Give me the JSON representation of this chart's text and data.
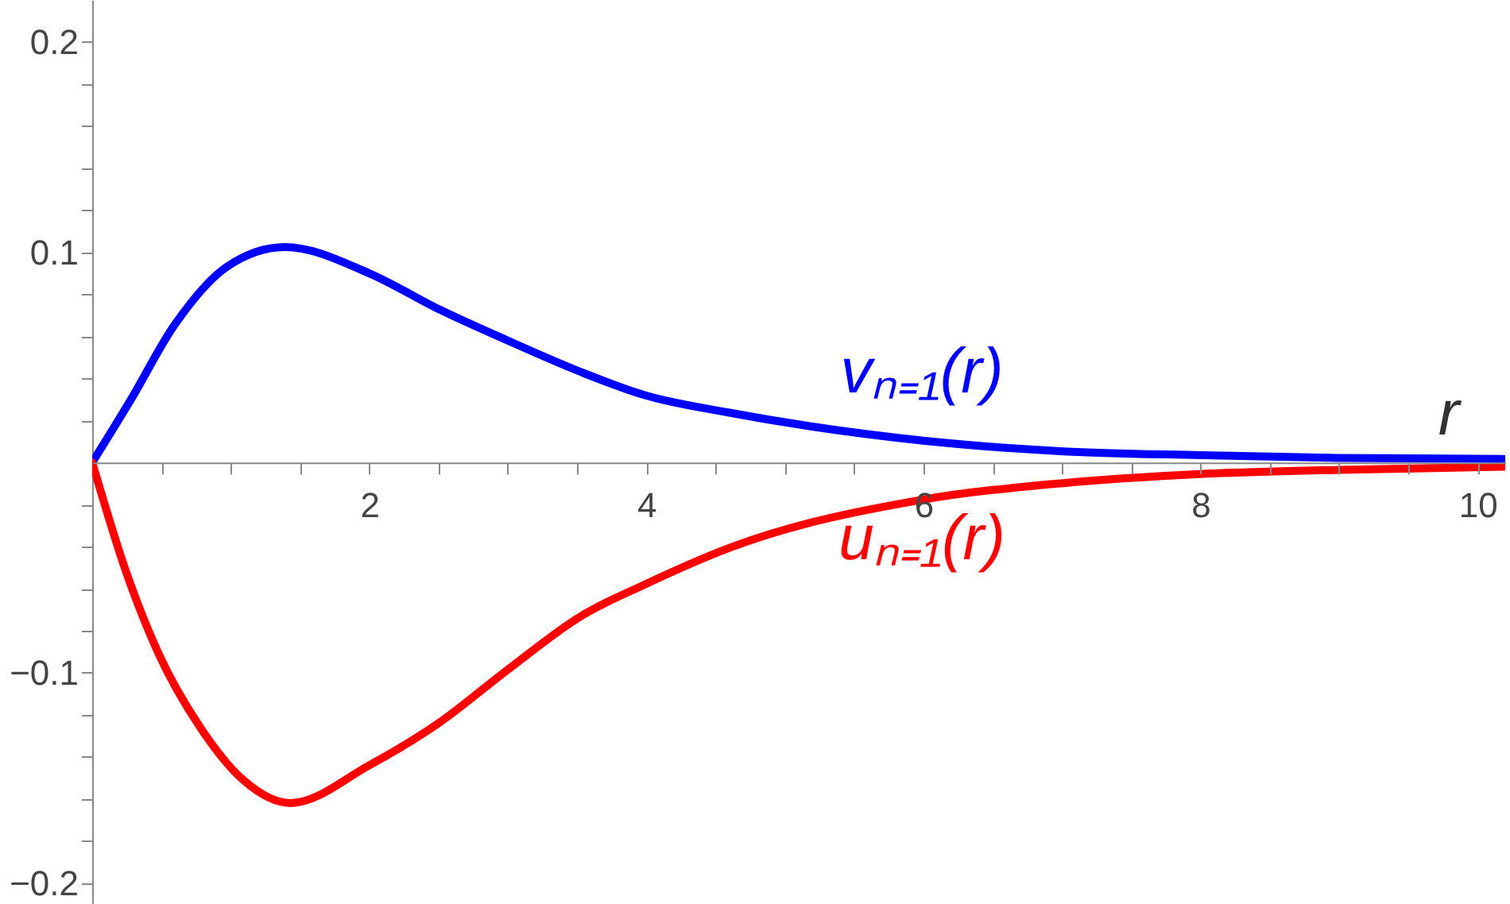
{
  "chart_data": {
    "type": "line",
    "xlabel": "r",
    "xlim": [
      0,
      10.2
    ],
    "ylim": [
      -0.21,
      0.22
    ],
    "xticks": [
      {
        "value": 0.5,
        "label": null
      },
      {
        "value": 1,
        "label": null
      },
      {
        "value": 1.5,
        "label": null
      },
      2,
      {
        "value": 2.5,
        "label": null
      },
      {
        "value": 3,
        "label": null
      },
      {
        "value": 3.5,
        "label": null
      },
      4,
      {
        "value": 4.5,
        "label": null
      },
      {
        "value": 5,
        "label": null
      },
      {
        "value": 5.5,
        "label": null
      },
      6,
      {
        "value": 6.5,
        "label": null
      },
      {
        "value": 7,
        "label": null
      },
      {
        "value": 7.5,
        "label": null
      },
      8,
      {
        "value": 8.5,
        "label": null
      },
      {
        "value": 9,
        "label": null
      },
      {
        "value": 9.5,
        "label": null
      },
      10
    ],
    "yticks": [
      {
        "value": -0.2,
        "label": "−0.2"
      },
      {
        "value": -0.18,
        "label": null
      },
      {
        "value": -0.16,
        "label": null
      },
      {
        "value": -0.14,
        "label": null
      },
      {
        "value": -0.12,
        "label": null
      },
      {
        "value": -0.1,
        "label": "−0.1"
      },
      {
        "value": -0.08,
        "label": null
      },
      {
        "value": -0.06,
        "label": null
      },
      {
        "value": -0.04,
        "label": null
      },
      {
        "value": -0.02,
        "label": null
      },
      {
        "value": 0.02,
        "label": null
      },
      {
        "value": 0.04,
        "label": null
      },
      {
        "value": 0.06,
        "label": null
      },
      {
        "value": 0.08,
        "label": null
      },
      0.1,
      {
        "value": 0.12,
        "label": null
      },
      {
        "value": 0.14,
        "label": null
      },
      {
        "value": 0.16,
        "label": null
      },
      {
        "value": 0.18,
        "label": null
      },
      0.2
    ],
    "grid": false,
    "line_style": "solid",
    "series": [
      {
        "color": "#0000ff",
        "x": [
          0,
          0.28,
          0.59,
          0.97,
          1.39,
          2.0,
          2.5,
          3.0,
          3.53,
          3.99,
          4.6,
          6.0,
          7.01,
          8.0,
          9.0,
          10.19
        ],
        "values": [
          0,
          0.03,
          0.065,
          0.093,
          0.1025,
          0.09,
          0.073,
          0.058,
          0.043,
          0.032,
          0.0237,
          0.0104,
          0.0053,
          0.0035,
          0.0022,
          0.0017
        ]
      },
      {
        "color": "#ff0000",
        "x": [
          0,
          0.25,
          0.48,
          0.78,
          1.09,
          1.43,
          2.0,
          2.5,
          3.0,
          3.53,
          3.99,
          4.6,
          6.0,
          7.01,
          8.0,
          9.0,
          10.19
        ],
        "values": [
          0,
          -0.053,
          -0.091,
          -0.126,
          -0.151,
          -0.162,
          -0.144,
          -0.124,
          -0.0985,
          -0.073,
          -0.058,
          -0.0406,
          -0.0176,
          -0.0098,
          -0.0055,
          -0.0035,
          -0.002
        ]
      }
    ],
    "annotations": [
      "vₙ₌₁(r)",
      "uₙ₌₁(r)"
    ]
  }
}
